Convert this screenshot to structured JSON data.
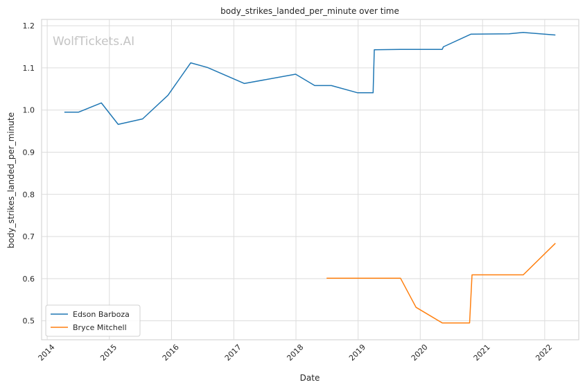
{
  "chart_data": {
    "type": "line",
    "title": "body_strikes_landed_per_minute over time",
    "xlabel": "Date",
    "ylabel": "body_strikes_landed_per_minute",
    "watermark": "WolfTickets.AI",
    "x_range": [
      "2013-11-29",
      "2022-07-20"
    ],
    "ylim": [
      0.455,
      1.215
    ],
    "x_ticks": [
      "2014",
      "2015",
      "2016",
      "2017",
      "2018",
      "2019",
      "2020",
      "2021",
      "2022"
    ],
    "y_ticks": [
      "0.5",
      "0.6",
      "0.7",
      "0.8",
      "0.9",
      "1.0",
      "1.1",
      "1.2"
    ],
    "grid": true,
    "legend_position": "lower-left",
    "series": [
      {
        "name": "Edson Barboza",
        "color": "#1f77b4",
        "points": [
          {
            "x": "2014-04-12",
            "y": 0.995
          },
          {
            "x": "2014-07-05",
            "y": 0.995
          },
          {
            "x": "2014-11-15",
            "y": 1.017
          },
          {
            "x": "2015-02-22",
            "y": 0.966
          },
          {
            "x": "2015-07-15",
            "y": 0.979
          },
          {
            "x": "2015-12-11",
            "y": 1.035
          },
          {
            "x": "2016-04-23",
            "y": 1.112
          },
          {
            "x": "2016-07-30",
            "y": 1.101
          },
          {
            "x": "2017-03-04",
            "y": 1.063
          },
          {
            "x": "2017-12-30",
            "y": 1.085
          },
          {
            "x": "2018-04-21",
            "y": 1.058
          },
          {
            "x": "2018-07-28",
            "y": 1.058
          },
          {
            "x": "2018-12-29",
            "y": 1.041
          },
          {
            "x": "2019-03-30",
            "y": 1.041
          },
          {
            "x": "2019-04-06",
            "y": 1.143
          },
          {
            "x": "2019-09-07",
            "y": 1.144
          },
          {
            "x": "2020-05-09",
            "y": 1.144
          },
          {
            "x": "2020-05-16",
            "y": 1.15
          },
          {
            "x": "2020-10-24",
            "y": 1.18
          },
          {
            "x": "2021-06-05",
            "y": 1.181
          },
          {
            "x": "2021-08-28",
            "y": 1.184
          },
          {
            "x": "2022-03-05",
            "y": 1.178
          }
        ]
      },
      {
        "name": "Bryce Mitchell",
        "color": "#ff7f0e",
        "points": [
          {
            "x": "2018-06-30",
            "y": 0.601
          },
          {
            "x": "2019-09-07",
            "y": 0.601
          },
          {
            "x": "2019-12-07",
            "y": 0.532
          },
          {
            "x": "2020-05-09",
            "y": 0.495
          },
          {
            "x": "2020-10-17",
            "y": 0.495
          },
          {
            "x": "2020-10-31",
            "y": 0.609
          },
          {
            "x": "2021-08-28",
            "y": 0.609
          },
          {
            "x": "2022-03-05",
            "y": 0.684
          }
        ]
      }
    ]
  }
}
